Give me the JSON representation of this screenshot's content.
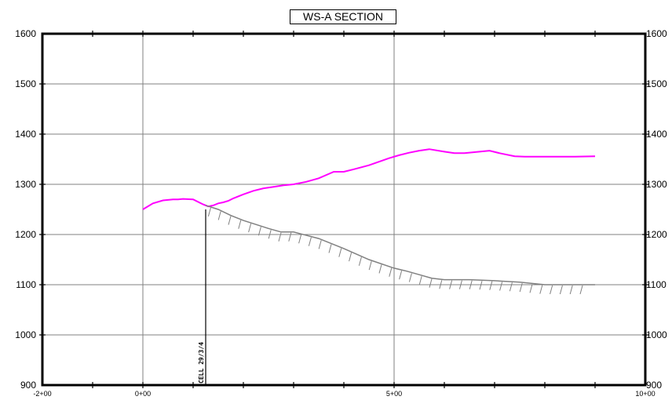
{
  "title": "WS-A SECTION",
  "chart_data": {
    "type": "line",
    "title": "WS-A SECTION",
    "x_tick_labels": [
      "-2+00",
      "0+00",
      "5+00",
      "10+00"
    ],
    "y_tick_labels_left": [
      "1600",
      "1500",
      "1400",
      "1300",
      "1200",
      "1100",
      "1000",
      "900"
    ],
    "y_tick_labels_right": [
      "1600",
      "1500",
      "1400",
      "1300",
      "1200",
      "1100",
      "1000",
      "900"
    ],
    "xlim": [
      -200,
      1000
    ],
    "ylim": [
      900,
      1600
    ],
    "x_gridlines": [
      0,
      500
    ],
    "y_gridlines": [
      1000,
      1100,
      1200,
      1300,
      1400,
      1500
    ],
    "series": [
      {
        "color": "#ff00ff",
        "x": [
          0,
          20,
          40,
          60,
          70,
          80,
          100,
          120,
          130,
          140,
          150,
          160,
          170,
          180,
          200,
          220,
          240,
          260,
          280,
          300,
          325,
          350,
          380,
          400,
          420,
          450,
          470,
          490,
          510,
          530,
          550,
          570,
          600,
          620,
          640,
          660,
          690,
          710,
          740,
          760,
          780,
          800,
          830,
          860,
          900
        ],
        "y": [
          1250,
          1262,
          1268,
          1270,
          1270,
          1271,
          1270,
          1260,
          1256,
          1258,
          1262,
          1264,
          1267,
          1272,
          1280,
          1287,
          1292,
          1295,
          1298,
          1300,
          1305,
          1312,
          1325,
          1325,
          1330,
          1338,
          1345,
          1352,
          1358,
          1363,
          1367,
          1370,
          1365,
          1362,
          1362,
          1364,
          1367,
          1362,
          1356,
          1355,
          1355,
          1355,
          1355,
          1355,
          1356
        ]
      },
      {
        "color": "#808080",
        "hatched": true,
        "x": [
          125,
          150,
          175,
          200,
          250,
          275,
          300,
          350,
          400,
          450,
          500,
          525,
          550,
          575,
          600,
          650,
          700,
          750,
          800,
          850,
          900
        ],
        "y": [
          1258,
          1250,
          1238,
          1228,
          1212,
          1205,
          1205,
          1192,
          1172,
          1150,
          1133,
          1127,
          1120,
          1113,
          1110,
          1110,
          1108,
          1105,
          1100,
          1100,
          1100
        ]
      }
    ],
    "annotations": [
      {
        "text": "CELL 29/3/4",
        "x": 125,
        "y_from": 900,
        "y_to": 1250
      }
    ],
    "colors": {
      "frame": "#000000",
      "grid": "#808080"
    }
  }
}
